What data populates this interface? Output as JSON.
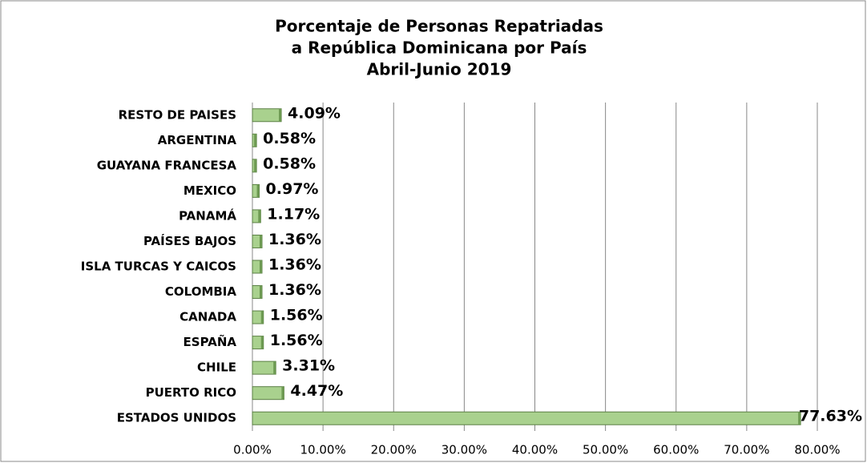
{
  "chart_data": {
    "type": "hbar",
    "title": [
      "Porcentaje de Personas Repatriadas",
      "a República Dominicana por País",
      "Abril-Junio 2019"
    ],
    "categories": [
      "RESTO DE PAISES",
      "ARGENTINA",
      "GUAYANA FRANCESA",
      "MEXICO",
      "PANAMÁ",
      "PAÍSES BAJOS",
      "ISLA TURCAS Y CAICOS",
      "COLOMBIA",
      "CANADA",
      "ESPAÑA",
      "CHILE",
      "PUERTO RICO",
      "ESTADOS UNIDOS"
    ],
    "values": [
      4.09,
      0.58,
      0.58,
      0.97,
      1.17,
      1.36,
      1.36,
      1.36,
      1.56,
      1.56,
      3.31,
      4.47,
      77.63
    ],
    "value_labels": [
      "4.09%",
      "0.58%",
      "0.58%",
      "0.97%",
      "1.17%",
      "1.36%",
      "1.36%",
      "1.36%",
      "1.56%",
      "1.56%",
      "3.31%",
      "4.47%",
      "77.63%"
    ],
    "color": "#a9d18e",
    "xlim": [
      0,
      80
    ],
    "xticks": [
      {
        "value": 0,
        "label": "0.00%"
      },
      {
        "value": 10,
        "label": "10.00%"
      },
      {
        "value": 20,
        "label": "20.00%"
      },
      {
        "value": 30,
        "label": "30.00%"
      },
      {
        "value": 40,
        "label": "40.00%"
      },
      {
        "value": 50,
        "label": "50.00%"
      },
      {
        "value": 60,
        "label": "60.00%"
      },
      {
        "value": 70,
        "label": "70.00%"
      },
      {
        "value": 80,
        "label": "80.00%"
      }
    ],
    "grid": true
  }
}
